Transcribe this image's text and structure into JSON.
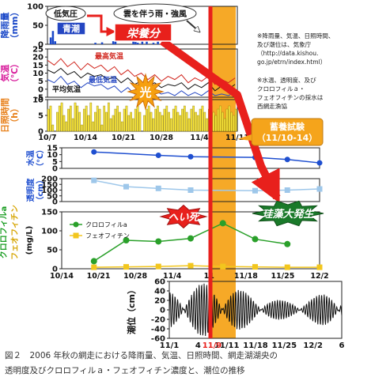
{
  "caption": {
    "line1": "図２　2006 年秋の網走における降雨量、気温、日照時間、網走湖湖央の",
    "line2": "透明度及びクロロフィルａ・フェオフィチン濃度と、潮位の推移"
  },
  "notes": {
    "source_met": "※降雨量、気温、日照時間、\n及び潮位は、気象庁\n（http://data.kishou.\ngo.jp/etrn/index.html）",
    "source_lake": "※水温、透明度、及び\nクロロフィルａ・\nフェオフィチンの採水は\n西網走漁協"
  },
  "callouts": {
    "low_pressure": "低気圧",
    "blue_tide": "青潮",
    "cloud": "雲を伴う雨・強風",
    "nutrients": "栄養分",
    "light": "光",
    "culture_test": "蓄養試験\n（11/10-14）",
    "die_off": "へい死",
    "algae_bloom": "珪藻大発生"
  },
  "colors": {
    "highlight_band": "#F5A41B",
    "red_line": "#E8201C",
    "rain_bars": "#1A48C8",
    "sun_bars": "#F8E53A",
    "chl": "#2AA02A",
    "pheo": "#F2C61E",
    "water_temp": "#1F4FD0",
    "transparency": "#9EC7EA",
    "axis_magenta": "#D81C9B",
    "axis_green": "#189C20",
    "axis_yellow": "#D6A400"
  },
  "chart_data": [
    {
      "type": "bar",
      "ylabel": "降雨量\n（mm）",
      "yticks": [
        "0",
        "50",
        "100"
      ],
      "ylim": [
        0,
        100
      ],
      "xlim": [
        0,
        85
      ],
      "x": [
        1,
        2,
        3,
        21,
        24,
        29,
        30,
        38,
        39,
        40,
        42,
        44,
        47,
        49
      ],
      "values": [
        18,
        35,
        8,
        4,
        5,
        8,
        12,
        10,
        6,
        4,
        14,
        10,
        4,
        7
      ]
    },
    {
      "type": "line",
      "ylabel": "気温\n（℃）",
      "yticks": [
        "-5",
        "0",
        "5",
        "10",
        "15",
        "20",
        "25"
      ],
      "ylim": [
        -5,
        25
      ],
      "xlim": [
        0,
        85
      ],
      "series": [
        {
          "name": "最高気温",
          "x": [
            0,
            3,
            6,
            9,
            12,
            15,
            18,
            21,
            24,
            27,
            30,
            33,
            36,
            39,
            42,
            45,
            48,
            51,
            54,
            57,
            60,
            63,
            66,
            69,
            72,
            75,
            78,
            81,
            84
          ],
          "values": [
            18,
            15,
            19,
            14,
            17,
            12,
            16,
            13,
            15,
            11,
            14,
            9,
            12,
            8,
            10,
            6,
            9,
            5,
            8,
            6,
            9,
            4,
            7,
            5,
            8,
            3,
            6,
            4,
            7
          ]
        },
        {
          "name": "平均気温",
          "x": [
            0,
            3,
            6,
            9,
            12,
            15,
            18,
            21,
            24,
            27,
            30,
            33,
            36,
            39,
            42,
            45,
            48,
            51,
            54,
            57,
            60,
            63,
            66,
            69,
            72,
            75,
            78,
            81,
            84
          ],
          "values": [
            12,
            10,
            13,
            9,
            11,
            7,
            10,
            8,
            9,
            6,
            8,
            4,
            7,
            3,
            5,
            2,
            4,
            1,
            3,
            2,
            4,
            0,
            3,
            1,
            4,
            -1,
            2,
            0,
            3
          ]
        },
        {
          "name": "最低気温",
          "x": [
            0,
            3,
            6,
            9,
            12,
            15,
            18,
            21,
            24,
            27,
            30,
            33,
            36,
            39,
            42,
            45,
            48,
            51,
            54,
            57,
            60,
            63,
            66,
            69,
            72,
            75,
            78,
            81,
            84
          ],
          "values": [
            6,
            4,
            8,
            3,
            5,
            1,
            4,
            2,
            3,
            0,
            2,
            -2,
            1,
            -3,
            0,
            -4,
            -1,
            -3,
            -2,
            -4,
            -1,
            -4,
            -2,
            -4,
            -1,
            -4,
            -3,
            -4,
            -2
          ]
        }
      ]
    },
    {
      "type": "bar",
      "ylabel": "日照時間\n（h）",
      "yticks": [
        "0",
        "5",
        "10"
      ],
      "ylim": [
        0,
        10
      ],
      "xlim": [
        0,
        85
      ],
      "x": [
        0,
        1,
        2,
        3,
        4,
        5,
        6,
        7,
        8,
        9,
        10,
        11,
        12,
        13,
        14,
        15,
        16,
        17,
        18,
        19,
        20,
        21,
        22,
        23,
        24,
        25,
        26,
        27,
        28,
        29,
        30,
        31,
        32,
        33,
        34,
        35,
        36,
        37,
        38,
        39,
        40,
        41,
        42,
        43,
        44,
        45,
        46,
        47,
        48,
        49,
        50,
        51,
        52,
        53,
        54,
        55,
        56,
        57,
        58,
        59,
        60,
        61,
        62,
        63,
        64,
        65,
        66,
        67,
        68,
        69,
        70,
        71,
        72,
        73,
        74,
        75,
        76,
        77,
        78,
        79,
        80,
        81,
        82,
        83,
        84
      ],
      "values": [
        7,
        8,
        2,
        0,
        6,
        8,
        9,
        5,
        3,
        7,
        8,
        4,
        9,
        8,
        6,
        2,
        7,
        8,
        5,
        9,
        3,
        6,
        8,
        7,
        2,
        8,
        6,
        9,
        4,
        5,
        7,
        8,
        6,
        3,
        7,
        8,
        5,
        6,
        4,
        7,
        8,
        6,
        0,
        5,
        7,
        8,
        6,
        4,
        7,
        8,
        6,
        5,
        7,
        8,
        6,
        4,
        7,
        8,
        6,
        5,
        7,
        8,
        6,
        4,
        7,
        8,
        6,
        5,
        7,
        8,
        6,
        4,
        7,
        8,
        6,
        5,
        7,
        8,
        6,
        4,
        7,
        8,
        6,
        5,
        7
      ],
      "xticks": [
        "10/7",
        "10/14",
        "10/21",
        "10/28",
        "11/4",
        "11/11"
      ]
    },
    {
      "type": "line",
      "ylabel": "水温\n（℃）",
      "yticks": [
        "0",
        "5",
        "10",
        "15"
      ],
      "ylim": [
        0,
        15
      ],
      "xlim": [
        0,
        56
      ],
      "series": [
        {
          "name": "",
          "x": [
            7,
            21,
            28,
            42,
            49,
            56
          ],
          "values": [
            12,
            9.5,
            8.5,
            8,
            6.5,
            4
          ]
        }
      ]
    },
    {
      "type": "line",
      "ylabel": "透明度\n（cm）",
      "yticks": [
        "0",
        "50",
        "100",
        "150",
        "200"
      ],
      "ylim": [
        0,
        200
      ],
      "xlim": [
        0,
        56
      ],
      "series": [
        {
          "name": "",
          "x": [
            7,
            14,
            21,
            28,
            42,
            49,
            56
          ],
          "values": [
            185,
            130,
            115,
            100,
            95,
            100,
            110
          ]
        }
      ]
    },
    {
      "type": "line",
      "ylabel": "(mg/L)",
      "ylabel_chl": "クロロフィルa",
      "ylabel_pheo": "フェオフィチン",
      "yticks": [
        "0",
        "50",
        "100",
        "150"
      ],
      "ylim": [
        0,
        150
      ],
      "xlim": [
        0,
        56
      ],
      "series": [
        {
          "name": "クロロフィルa",
          "x": [
            7,
            14,
            21,
            28,
            35,
            42,
            49,
            56
          ],
          "values": [
            20,
            75,
            72,
            80,
            120,
            78,
            65,
            0
          ]
        },
        {
          "name": "フェオフィチン",
          "x": [
            7,
            14,
            21,
            28,
            35,
            42,
            49,
            56
          ],
          "values": [
            4,
            5,
            6,
            8,
            6,
            5,
            4,
            4
          ]
        }
      ],
      "xticks": [
        "10/14",
        "10/21",
        "10/28",
        "11/4",
        "11",
        "11/18",
        "11/25",
        "12/2"
      ]
    },
    {
      "type": "line",
      "ylabel": "潮位（cm）",
      "yticks": [
        "-60",
        "-40",
        "-20",
        "0",
        "20",
        "40",
        "60"
      ],
      "ylim": [
        -60,
        60
      ],
      "xlim": [
        1,
        36
      ],
      "xticks": [
        "11/1",
        "4",
        "11/11",
        "11/18",
        "11/25",
        "12/2",
        "6"
      ],
      "highlight_label": "11/9"
    }
  ]
}
